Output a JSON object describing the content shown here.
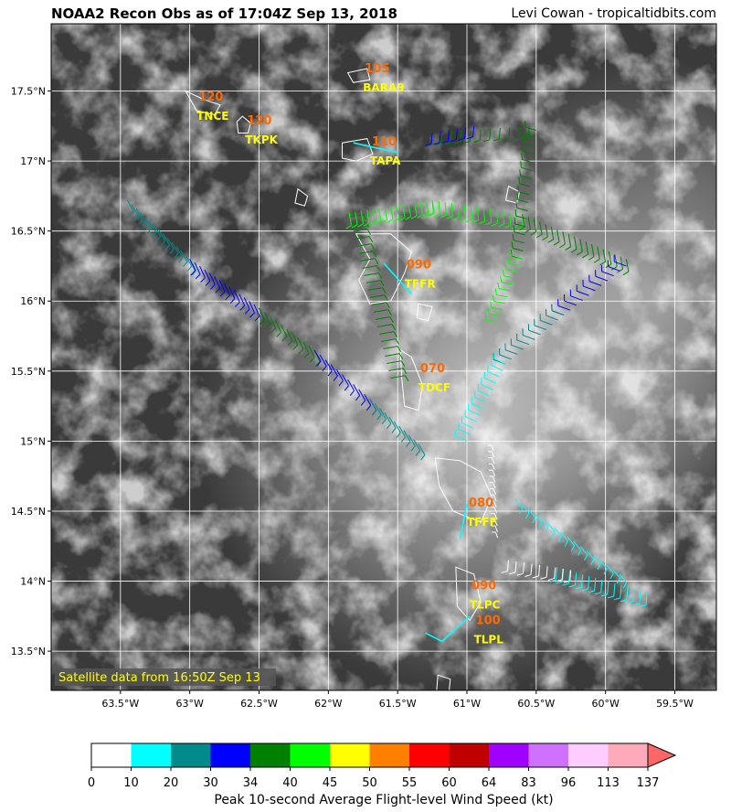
{
  "header": {
    "title": "NOAA2 Recon Obs as of 17:04Z Sep 13, 2018",
    "credit": "Levi Cowan - tropicaltidbits.com"
  },
  "map": {
    "lon_range": [
      -64.0,
      -59.2
    ],
    "lat_range": [
      13.22,
      17.98
    ],
    "x_ticks": [
      "63.5°W",
      "63°W",
      "62.5°W",
      "62°W",
      "61.5°W",
      "61°W",
      "60.5°W",
      "60°W",
      "59.5°W"
    ],
    "x_tick_values": [
      -63.5,
      -63.0,
      -62.5,
      -62.0,
      -61.5,
      -61.0,
      -60.5,
      -60.0,
      -59.5
    ],
    "y_ticks": [
      "17.5°N",
      "17°N",
      "16.5°N",
      "16°N",
      "15.5°N",
      "15°N",
      "14.5°N",
      "14°N",
      "13.5°N"
    ],
    "y_tick_values": [
      17.5,
      17.0,
      16.5,
      16.0,
      15.5,
      15.0,
      14.5,
      14.0,
      13.5
    ],
    "satellite_note": "Satellite data from 16:50Z Sep 13",
    "stations": [
      {
        "id": "BARA9",
        "value": "105",
        "lon": -61.75,
        "lat": 17.62
      },
      {
        "id": "TNCE",
        "value": "120",
        "lon": -62.95,
        "lat": 17.42
      },
      {
        "id": "TKPK",
        "value": "120",
        "lon": -62.6,
        "lat": 17.25
      },
      {
        "id": "TAPA",
        "value": "110",
        "lon": -61.7,
        "lat": 17.1
      },
      {
        "id": "TFFR",
        "value": "090",
        "lon": -61.45,
        "lat": 16.22
      },
      {
        "id": "TDCF",
        "value": "070",
        "lon": -61.35,
        "lat": 15.48
      },
      {
        "id": "TFFF",
        "value": "080",
        "lon": -61.0,
        "lat": 14.52
      },
      {
        "id": "TLPC",
        "value": "090",
        "lon": -60.98,
        "lat": 13.93
      },
      {
        "id": "TLPL",
        "value": "100",
        "lon": -60.95,
        "lat": 13.68
      }
    ]
  },
  "colorbar": {
    "ticks": [
      "0",
      "10",
      "20",
      "30",
      "34",
      "40",
      "45",
      "50",
      "55",
      "60",
      "64",
      "83",
      "96",
      "113",
      "137"
    ],
    "colors": [
      "#ffffff",
      "#00ffff",
      "#008b8b",
      "#0000ff",
      "#008000",
      "#00ff00",
      "#ffff00",
      "#ff8000",
      "#ff0000",
      "#c00000",
      "#a000ff",
      "#d070ff",
      "#ffccff",
      "#ffaabb",
      "#ff6666"
    ],
    "label": "Peak 10-second Average Flight-level Wind Speed (kt)"
  }
}
